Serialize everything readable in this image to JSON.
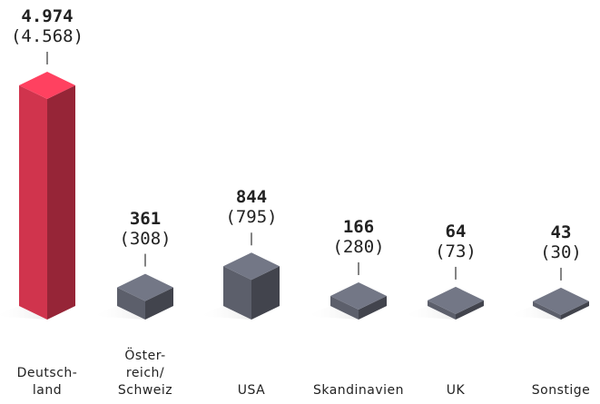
{
  "chart_data": {
    "type": "bar3d",
    "categories": [
      "Deutsch-\nland",
      "Öster-\nreich/\nSchweiz",
      "USA",
      "Skandinavien",
      "UK",
      "Sonstige"
    ],
    "series": [
      {
        "values": [
          4974,
          361,
          844,
          166,
          64,
          43
        ],
        "value_labels": [
          "4.974",
          "361",
          "844",
          "166",
          "64",
          "43"
        ],
        "colors": [
          "#d0344d",
          "#5c5f6b",
          "#5c5f6b",
          "#5c5f6b",
          "#5c5f6b",
          "#5c5f6b"
        ]
      },
      {
        "values": [
          4568,
          308,
          795,
          280,
          73,
          30
        ],
        "value_labels": [
          "(4.568)",
          "(308)",
          "(795)",
          "(280)",
          "(73)",
          "(30)"
        ]
      }
    ]
  }
}
